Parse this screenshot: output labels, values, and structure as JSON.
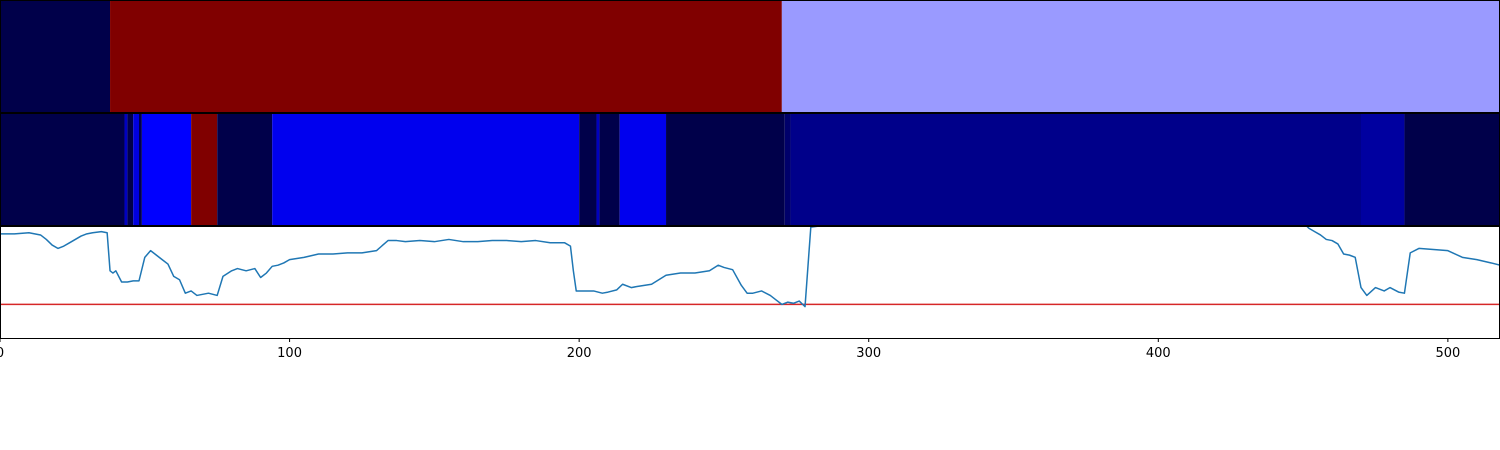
{
  "chart_data": {
    "type": "heatmap",
    "xlim": [
      0,
      518
    ],
    "x_ticks": [
      {
        "value": 0,
        "label": "0"
      },
      {
        "value": 100,
        "label": "100"
      },
      {
        "value": 200,
        "label": "200"
      },
      {
        "value": 300,
        "label": "300"
      },
      {
        "value": 400,
        "label": "400"
      },
      {
        "value": 500,
        "label": "500"
      }
    ],
    "segment_bars": [
      {
        "segments": [
          {
            "start": 0,
            "end": 38,
            "color": "#00004a"
          },
          {
            "start": 38,
            "end": 270,
            "color": "#800000"
          },
          {
            "start": 270,
            "end": 518,
            "color": "#9a9aff"
          }
        ]
      },
      {
        "segments": [
          {
            "start": 0,
            "end": 43,
            "color": "#00004a"
          },
          {
            "start": 43,
            "end": 44,
            "color": "#0000c0"
          },
          {
            "start": 44,
            "end": 46,
            "color": "#00004a"
          },
          {
            "start": 46,
            "end": 48,
            "color": "#0000e0"
          },
          {
            "start": 48,
            "end": 49,
            "color": "#00004a"
          },
          {
            "start": 49,
            "end": 66,
            "color": "#0000ff"
          },
          {
            "start": 66,
            "end": 75,
            "color": "#800000"
          },
          {
            "start": 75,
            "end": 94,
            "color": "#00004a"
          },
          {
            "start": 94,
            "end": 200,
            "color": "#0000ee"
          },
          {
            "start": 200,
            "end": 206,
            "color": "#00004a"
          },
          {
            "start": 206,
            "end": 207,
            "color": "#0000c0"
          },
          {
            "start": 207,
            "end": 214,
            "color": "#00004a"
          },
          {
            "start": 214,
            "end": 230,
            "color": "#0000ee"
          },
          {
            "start": 230,
            "end": 271,
            "color": "#00004a"
          },
          {
            "start": 271,
            "end": 273,
            "color": "#00006a"
          },
          {
            "start": 273,
            "end": 470,
            "color": "#00008a"
          },
          {
            "start": 470,
            "end": 485,
            "color": "#0000a0"
          },
          {
            "start": 485,
            "end": 518,
            "color": "#00004a"
          }
        ]
      }
    ],
    "line_ylim": [
      0,
      1
    ],
    "threshold": {
      "value": 0.3,
      "color": "#d62728"
    },
    "series": [
      {
        "color": "#1f77b4",
        "x": [
          0,
          5,
          10,
          12,
          14,
          16,
          18,
          20,
          22,
          24,
          26,
          28,
          30,
          32,
          35,
          37,
          38,
          39,
          40,
          42,
          44,
          46,
          48,
          50,
          52,
          54,
          56,
          58,
          60,
          62,
          64,
          66,
          68,
          70,
          72,
          75,
          77,
          80,
          82,
          85,
          88,
          90,
          92,
          94,
          96,
          98,
          100,
          105,
          110,
          115,
          120,
          125,
          130,
          134,
          137,
          140,
          145,
          150,
          155,
          160,
          165,
          170,
          175,
          180,
          185,
          190,
          195,
          197,
          198,
          199,
          200,
          205,
          208,
          210,
          213,
          215,
          218,
          220,
          225,
          230,
          235,
          240,
          245,
          248,
          250,
          253,
          256,
          258,
          260,
          263,
          266,
          268,
          270,
          272,
          274,
          276,
          278,
          280,
          283,
          290,
          300,
          330,
          350,
          380,
          420,
          450,
          452,
          454,
          456,
          458,
          460,
          462,
          464,
          466,
          468,
          470,
          472,
          475,
          478,
          480,
          483,
          485,
          487,
          490,
          495,
          500,
          505,
          510,
          515,
          518
        ],
        "y": [
          0.93,
          0.93,
          0.94,
          0.93,
          0.92,
          0.88,
          0.83,
          0.8,
          0.82,
          0.85,
          0.88,
          0.91,
          0.93,
          0.94,
          0.95,
          0.94,
          0.6,
          0.58,
          0.6,
          0.5,
          0.5,
          0.51,
          0.51,
          0.72,
          0.78,
          0.74,
          0.7,
          0.66,
          0.55,
          0.52,
          0.4,
          0.42,
          0.38,
          0.39,
          0.4,
          0.38,
          0.55,
          0.6,
          0.62,
          0.6,
          0.62,
          0.54,
          0.58,
          0.64,
          0.65,
          0.67,
          0.7,
          0.72,
          0.75,
          0.75,
          0.76,
          0.76,
          0.78,
          0.87,
          0.87,
          0.86,
          0.87,
          0.86,
          0.88,
          0.86,
          0.86,
          0.87,
          0.87,
          0.86,
          0.87,
          0.85,
          0.85,
          0.82,
          0.6,
          0.42,
          0.42,
          0.42,
          0.4,
          0.41,
          0.43,
          0.48,
          0.45,
          0.46,
          0.48,
          0.56,
          0.58,
          0.58,
          0.6,
          0.65,
          0.63,
          0.61,
          0.47,
          0.4,
          0.4,
          0.42,
          0.38,
          0.34,
          0.3,
          0.32,
          0.31,
          0.33,
          0.28,
          0.99,
          1.0,
          1.02,
          1.05,
          1.05,
          1.05,
          1.05,
          1.05,
          1.03,
          0.98,
          0.95,
          0.92,
          0.88,
          0.87,
          0.84,
          0.75,
          0.74,
          0.72,
          0.45,
          0.38,
          0.45,
          0.42,
          0.45,
          0.41,
          0.4,
          0.76,
          0.8,
          0.79,
          0.78,
          0.72,
          0.7,
          0.67,
          0.65
        ],
        "label": ""
      }
    ],
    "title": "",
    "xlabel": "",
    "ylabel": "",
    "grid": false
  }
}
